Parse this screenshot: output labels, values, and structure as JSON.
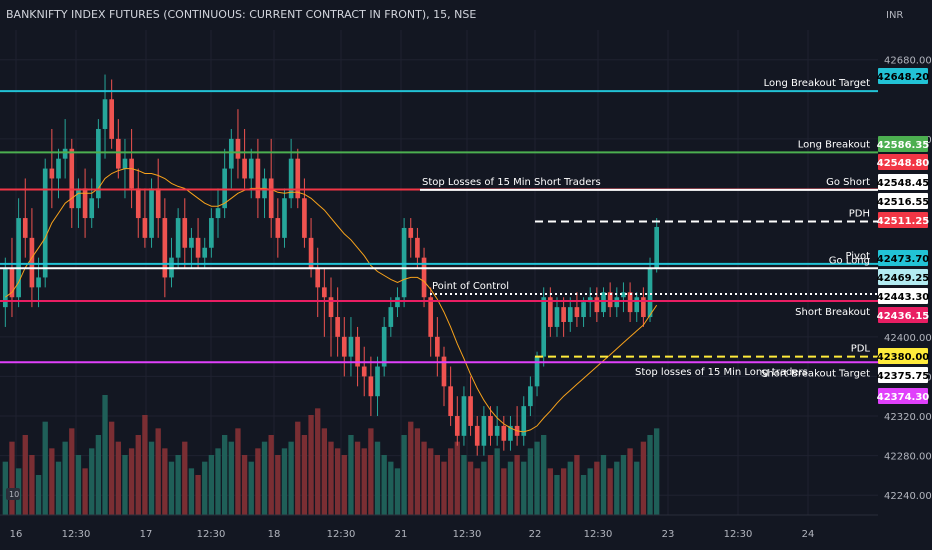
{
  "header": {
    "title": "BANKNIFTY INDEX FUTURES (CONTINUOUS: CURRENT CONTRACT IN FRONT), 15, NSE",
    "currency": "INR",
    "corner_badge": "10"
  },
  "colors": {
    "background": "#131722",
    "grid": "#1f2230",
    "up": "#26a69a",
    "down": "#ef5350",
    "vol_up": "#1f5f58",
    "vol_down": "#7a2e33",
    "ma": "#f7a21b"
  },
  "chart_data": {
    "type": "candlestick",
    "title": "BANKNIFTY INDEX FUTURES (CONTINUOUS: CURRENT CONTRACT IN FRONT), 15, NSE",
    "y_axis": {
      "unit": "INR",
      "range": [
        42220,
        42710
      ],
      "ticks": [
        42680,
        42600,
        42400,
        42360,
        42320,
        42280,
        42240
      ]
    },
    "x_axis": {
      "ticks": [
        "16",
        "12:30",
        "17",
        "12:30",
        "18",
        "12:30",
        "21",
        "12:30",
        "22",
        "12:30",
        "23",
        "12:30",
        "24"
      ]
    },
    "levels": [
      {
        "label": "Long Breakout Target",
        "price": 42648.2,
        "tag": "42648.20",
        "color": "#22c3d6",
        "style": "solid",
        "tag_bg": "#22c3d6",
        "tag_fg": "#000000"
      },
      {
        "label": "Long Breakout",
        "price": 42586.35,
        "tag": "42586.35",
        "color": "#4caf50",
        "style": "solid",
        "tag_bg": "#4caf50",
        "tag_fg": "#ffffff"
      },
      {
        "label": "",
        "price": 42548.8,
        "tag": "42548.80",
        "color": "#f23645",
        "style": "solid",
        "tag_bg": "#f23645",
        "tag_fg": "#ffffff"
      },
      {
        "label": "Stop Losses of 15 Min Short Traders",
        "price": 42548.45,
        "tag": "42548.45",
        "color": "#ffffff",
        "style": "solid",
        "tag_bg": "#ffffff",
        "tag_fg": "#000000"
      },
      {
        "label": "Go Short",
        "price": 42548.45,
        "tag": "",
        "color": "#ffffff",
        "style": "none",
        "tag_bg": "",
        "tag_fg": ""
      },
      {
        "label": "PDH",
        "price": 42516.55,
        "tag": "42516.55",
        "color": "#ffffff",
        "style": "dashed",
        "tag_bg": "#ffffff",
        "tag_fg": "#000000"
      },
      {
        "label": "",
        "price": 42511.25,
        "tag": "42511.25",
        "color": "#f23645",
        "style": "none",
        "tag_bg": "#f23645",
        "tag_fg": "#ffffff"
      },
      {
        "label": "Pivot",
        "price": 42473.7,
        "tag": "42473.70",
        "color": "#22c3d6",
        "style": "solid",
        "tag_bg": "#22c3d6",
        "tag_fg": "#000000"
      },
      {
        "label": "Go Long",
        "price": 42469.25,
        "tag": "42469.25",
        "color": "#ffffff",
        "style": "solid",
        "tag_bg": "#b2ebf2",
        "tag_fg": "#000000"
      },
      {
        "label": "Point of Control",
        "price": 42443.3,
        "tag": "42443.30",
        "color": "#ffffff",
        "style": "dotted",
        "tag_bg": "#ffffff",
        "tag_fg": "#000000"
      },
      {
        "label": "Short Breakout",
        "price": 42436.15,
        "tag": "42436.15",
        "color": "#e91e63",
        "style": "solid",
        "tag_bg": "#e91e63",
        "tag_fg": "#ffffff"
      },
      {
        "label": "PDL",
        "price": 42380.0,
        "tag": "42380.00",
        "color": "#ffeb3b",
        "style": "dashed",
        "tag_bg": "#ffeb3b",
        "tag_fg": "#000000"
      },
      {
        "label": "Stop losses of 15 Min Long traders",
        "price": 42375.75,
        "tag": "42375.75",
        "color": "#ffffff",
        "style": "none",
        "tag_bg": "#ffffff",
        "tag_fg": "#000000"
      },
      {
        "label": "Short Breakout Target",
        "price": 42374.3,
        "tag": "42374.30",
        "color": "#e040fb",
        "style": "solid",
        "tag_bg": "#e040fb",
        "tag_fg": "#ffffff"
      }
    ],
    "candles": [
      {
        "o": 42430,
        "h": 42480,
        "c": 42470,
        "l": 42410
      },
      {
        "o": 42470,
        "h": 42500,
        "c": 42440,
        "l": 42420
      },
      {
        "o": 42440,
        "h": 42540,
        "c": 42520,
        "l": 42430
      },
      {
        "o": 42520,
        "h": 42560,
        "c": 42500,
        "l": 42480
      },
      {
        "o": 42500,
        "h": 42530,
        "c": 42450,
        "l": 42430
      },
      {
        "o": 42450,
        "h": 42480,
        "c": 42460,
        "l": 42430
      },
      {
        "o": 42460,
        "h": 42580,
        "c": 42570,
        "l": 42450
      },
      {
        "o": 42570,
        "h": 42610,
        "c": 42560,
        "l": 42530
      },
      {
        "o": 42560,
        "h": 42590,
        "c": 42580,
        "l": 42540
      },
      {
        "o": 42580,
        "h": 42620,
        "c": 42590,
        "l": 42560
      },
      {
        "o": 42590,
        "h": 42600,
        "c": 42530,
        "l": 42510
      },
      {
        "o": 42530,
        "h": 42560,
        "c": 42550,
        "l": 42510
      },
      {
        "o": 42550,
        "h": 42570,
        "c": 42520,
        "l": 42500
      },
      {
        "o": 42520,
        "h": 42560,
        "c": 42540,
        "l": 42510
      },
      {
        "o": 42540,
        "h": 42620,
        "c": 42610,
        "l": 42530
      },
      {
        "o": 42610,
        "h": 42665,
        "c": 42640,
        "l": 42580
      },
      {
        "o": 42640,
        "h": 42660,
        "c": 42600,
        "l": 42590
      },
      {
        "o": 42600,
        "h": 42620,
        "c": 42570,
        "l": 42560
      },
      {
        "o": 42570,
        "h": 42600,
        "c": 42580,
        "l": 42540
      },
      {
        "o": 42580,
        "h": 42610,
        "c": 42550,
        "l": 42530
      },
      {
        "o": 42550,
        "h": 42570,
        "c": 42520,
        "l": 42500
      },
      {
        "o": 42520,
        "h": 42550,
        "c": 42500,
        "l": 42490
      },
      {
        "o": 42500,
        "h": 42560,
        "c": 42550,
        "l": 42490
      },
      {
        "o": 42550,
        "h": 42580,
        "c": 42520,
        "l": 42500
      },
      {
        "o": 42520,
        "h": 42540,
        "c": 42460,
        "l": 42440
      },
      {
        "o": 42460,
        "h": 42500,
        "c": 42480,
        "l": 42450
      },
      {
        "o": 42480,
        "h": 42530,
        "c": 42520,
        "l": 42470
      },
      {
        "o": 42520,
        "h": 42540,
        "c": 42490,
        "l": 42470
      },
      {
        "o": 42490,
        "h": 42510,
        "c": 42500,
        "l": 42470
      },
      {
        "o": 42500,
        "h": 42520,
        "c": 42480,
        "l": 42470
      },
      {
        "o": 42480,
        "h": 42500,
        "c": 42490,
        "l": 42470
      },
      {
        "o": 42490,
        "h": 42530,
        "c": 42520,
        "l": 42480
      },
      {
        "o": 42520,
        "h": 42550,
        "c": 42530,
        "l": 42500
      },
      {
        "o": 42530,
        "h": 42590,
        "c": 42570,
        "l": 42520
      },
      {
        "o": 42570,
        "h": 42610,
        "c": 42600,
        "l": 42550
      },
      {
        "o": 42600,
        "h": 42630,
        "c": 42580,
        "l": 42560
      },
      {
        "o": 42580,
        "h": 42610,
        "c": 42560,
        "l": 42550
      },
      {
        "o": 42560,
        "h": 42590,
        "c": 42580,
        "l": 42540
      },
      {
        "o": 42580,
        "h": 42600,
        "c": 42540,
        "l": 42520
      },
      {
        "o": 42540,
        "h": 42570,
        "c": 42560,
        "l": 42520
      },
      {
        "o": 42560,
        "h": 42600,
        "c": 42520,
        "l": 42500
      },
      {
        "o": 42520,
        "h": 42540,
        "c": 42500,
        "l": 42480
      },
      {
        "o": 42500,
        "h": 42550,
        "c": 42540,
        "l": 42490
      },
      {
        "o": 42540,
        "h": 42600,
        "c": 42580,
        "l": 42530
      },
      {
        "o": 42580,
        "h": 42590,
        "c": 42540,
        "l": 42530
      },
      {
        "o": 42540,
        "h": 42560,
        "c": 42500,
        "l": 42490
      },
      {
        "o": 42500,
        "h": 42520,
        "c": 42470,
        "l": 42460
      },
      {
        "o": 42470,
        "h": 42490,
        "c": 42450,
        "l": 42420
      },
      {
        "o": 42450,
        "h": 42470,
        "c": 42440,
        "l": 42400
      },
      {
        "o": 42440,
        "h": 42460,
        "c": 42420,
        "l": 42380
      },
      {
        "o": 42420,
        "h": 42450,
        "c": 42400,
        "l": 42380
      },
      {
        "o": 42400,
        "h": 42420,
        "c": 42380,
        "l": 42360
      },
      {
        "o": 42380,
        "h": 42420,
        "c": 42400,
        "l": 42360
      },
      {
        "o": 42400,
        "h": 42410,
        "c": 42370,
        "l": 42350
      },
      {
        "o": 42370,
        "h": 42390,
        "c": 42360,
        "l": 42340
      },
      {
        "o": 42360,
        "h": 42380,
        "c": 42340,
        "l": 42320
      },
      {
        "o": 42340,
        "h": 42380,
        "c": 42370,
        "l": 42320
      },
      {
        "o": 42370,
        "h": 42420,
        "c": 42410,
        "l": 42360
      },
      {
        "o": 42410,
        "h": 42440,
        "c": 42430,
        "l": 42400
      },
      {
        "o": 42430,
        "h": 42450,
        "c": 42440,
        "l": 42420
      },
      {
        "o": 42440,
        "h": 42520,
        "c": 42510,
        "l": 42430
      },
      {
        "o": 42510,
        "h": 42520,
        "c": 42500,
        "l": 42480
      },
      {
        "o": 42500,
        "h": 42510,
        "c": 42480,
        "l": 42470
      },
      {
        "o": 42480,
        "h": 42490,
        "c": 42440,
        "l": 42430
      },
      {
        "o": 42440,
        "h": 42450,
        "c": 42400,
        "l": 42380
      },
      {
        "o": 42400,
        "h": 42420,
        "c": 42380,
        "l": 42360
      },
      {
        "o": 42380,
        "h": 42390,
        "c": 42350,
        "l": 42330
      },
      {
        "o": 42350,
        "h": 42370,
        "c": 42320,
        "l": 42310
      },
      {
        "o": 42320,
        "h": 42340,
        "c": 42300,
        "l": 42290
      },
      {
        "o": 42300,
        "h": 42350,
        "c": 42340,
        "l": 42290
      },
      {
        "o": 42340,
        "h": 42360,
        "c": 42310,
        "l": 42300
      },
      {
        "o": 42310,
        "h": 42320,
        "c": 42290,
        "l": 42280
      },
      {
        "o": 42290,
        "h": 42330,
        "c": 42320,
        "l": 42280
      },
      {
        "o": 42320,
        "h": 42330,
        "c": 42300,
        "l": 42290
      },
      {
        "o": 42300,
        "h": 42330,
        "c": 42310,
        "l": 42290
      },
      {
        "o": 42310,
        "h": 42320,
        "c": 42295,
        "l": 42285
      },
      {
        "o": 42295,
        "h": 42320,
        "c": 42310,
        "l": 42285
      },
      {
        "o": 42310,
        "h": 42330,
        "c": 42300,
        "l": 42290
      },
      {
        "o": 42300,
        "h": 42340,
        "c": 42330,
        "l": 42290
      },
      {
        "o": 42330,
        "h": 42360,
        "c": 42350,
        "l": 42320
      },
      {
        "o": 42350,
        "h": 42385,
        "c": 42380,
        "l": 42340
      },
      {
        "o": 42380,
        "h": 42450,
        "c": 42440,
        "l": 42370
      },
      {
        "o": 42440,
        "h": 42450,
        "c": 42410,
        "l": 42400
      },
      {
        "o": 42410,
        "h": 42440,
        "c": 42430,
        "l": 42400
      },
      {
        "o": 42430,
        "h": 42440,
        "c": 42415,
        "l": 42400
      },
      {
        "o": 42415,
        "h": 42440,
        "c": 42430,
        "l": 42405
      },
      {
        "o": 42430,
        "h": 42445,
        "c": 42420,
        "l": 42410
      },
      {
        "o": 42420,
        "h": 42440,
        "c": 42435,
        "l": 42410
      },
      {
        "o": 42435,
        "h": 42450,
        "c": 42440,
        "l": 42420
      },
      {
        "o": 42440,
        "h": 42450,
        "c": 42425,
        "l": 42415
      },
      {
        "o": 42425,
        "h": 42450,
        "c": 42445,
        "l": 42420
      },
      {
        "o": 42445,
        "h": 42455,
        "c": 42430,
        "l": 42420
      },
      {
        "o": 42430,
        "h": 42450,
        "c": 42440,
        "l": 42420
      },
      {
        "o": 42440,
        "h": 42455,
        "c": 42445,
        "l": 42425
      },
      {
        "o": 42445,
        "h": 42455,
        "c": 42425,
        "l": 42415
      },
      {
        "o": 42425,
        "h": 42445,
        "c": 42440,
        "l": 42415
      },
      {
        "o": 42440,
        "h": 42450,
        "c": 42420,
        "l": 42410
      },
      {
        "o": 42420,
        "h": 42480,
        "c": 42470,
        "l": 42415
      },
      {
        "o": 42470,
        "h": 42520,
        "c": 42511,
        "l": 42465
      }
    ],
    "volumes": [
      40,
      55,
      35,
      60,
      45,
      30,
      70,
      50,
      40,
      55,
      65,
      45,
      35,
      50,
      60,
      90,
      70,
      55,
      45,
      50,
      60,
      75,
      55,
      65,
      50,
      40,
      45,
      55,
      35,
      30,
      40,
      45,
      50,
      60,
      55,
      65,
      45,
      40,
      50,
      55,
      60,
      45,
      50,
      55,
      70,
      60,
      75,
      80,
      65,
      55,
      50,
      45,
      60,
      55,
      50,
      65,
      55,
      45,
      40,
      35,
      60,
      70,
      65,
      55,
      50,
      45,
      40,
      50,
      55,
      45,
      40,
      35,
      40,
      45,
      50,
      35,
      40,
      45,
      40,
      50,
      55,
      60,
      35,
      30,
      35,
      40,
      45,
      30,
      35,
      40,
      45,
      35,
      40,
      45,
      50,
      40,
      55,
      60,
      65
    ],
    "moving_average": [
      42440,
      42445,
      42455,
      42470,
      42480,
      42490,
      42500,
      42515,
      42525,
      42535,
      42540,
      42545,
      42545,
      42545,
      42550,
      42560,
      42565,
      42568,
      42570,
      42570,
      42568,
      42565,
      42565,
      42563,
      42560,
      42555,
      42552,
      42550,
      42545,
      42540,
      42535,
      42532,
      42532,
      42535,
      42540,
      42545,
      42548,
      42550,
      42550,
      42550,
      42549,
      42546,
      42545,
      42546,
      42546,
      42544,
      42540,
      42534,
      42528,
      42520,
      42512,
      42504,
      42498,
      42490,
      42482,
      42472,
      42466,
      42462,
      42458,
      42455,
      42458,
      42460,
      42460,
      42456,
      42448,
      42438,
      42425,
      42410,
      42393,
      42378,
      42362,
      42348,
      42336,
      42326,
      42318,
      42312,
      42308,
      42305,
      42304,
      42306,
      42310,
      42318,
      42325,
      42333,
      42340,
      42346,
      42352,
      42358,
      42364,
      42370,
      42376,
      42382,
      42388,
      42394,
      42400,
      42406,
      42412,
      42422,
      42432
    ]
  }
}
